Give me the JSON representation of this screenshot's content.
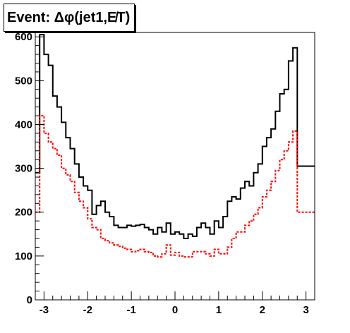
{
  "chart_data": {
    "type": "line",
    "step": true,
    "title": "Event: Δφ(jet1,E̸T)",
    "xlabel": "",
    "ylabel": "",
    "xlim": [
      -3.2,
      3.2
    ],
    "ylim": [
      0,
      610
    ],
    "x_ticks": [
      "-3",
      "-2",
      "-1",
      "0",
      "1",
      "2",
      "3"
    ],
    "y_ticks": [
      "0",
      "100",
      "200",
      "300",
      "400",
      "500",
      "600"
    ],
    "bin_edges": [
      -3.2,
      -3.1,
      -3.0,
      -2.9,
      -2.8,
      -2.7,
      -2.6,
      -2.5,
      -2.4,
      -2.3,
      -2.2,
      -2.1,
      -2.0,
      -1.9,
      -1.8,
      -1.7,
      -1.6,
      -1.5,
      -1.4,
      -1.3,
      -1.2,
      -1.1,
      -1.0,
      -0.9,
      -0.8,
      -0.7,
      -0.6,
      -0.5,
      -0.4,
      -0.3,
      -0.2,
      -0.1,
      0.0,
      0.1,
      0.2,
      0.3,
      0.4,
      0.5,
      0.6,
      0.7,
      0.8,
      0.9,
      1.0,
      1.1,
      1.2,
      1.3,
      1.4,
      1.5,
      1.6,
      1.7,
      1.8,
      1.9,
      2.0,
      2.1,
      2.2,
      2.3,
      2.4,
      2.5,
      2.6,
      2.7,
      2.8,
      2.9,
      3.0,
      3.1,
      3.2
    ],
    "series": [
      {
        "color": "#000000",
        "style": "solid",
        "values": [
          290,
          605,
          560,
          535,
          465,
          440,
          405,
          370,
          345,
          310,
          280,
          260,
          250,
          195,
          215,
          225,
          200,
          190,
          170,
          165,
          165,
          170,
          168,
          170,
          172,
          165,
          160,
          150,
          165,
          155,
          175,
          150,
          155,
          150,
          140,
          150,
          145,
          165,
          175,
          165,
          150,
          180,
          165,
          190,
          225,
          235,
          230,
          255,
          270,
          260,
          290,
          310,
          350,
          370,
          390,
          430,
          470,
          480,
          545,
          575,
          305,
          305,
          305,
          305
        ]
      },
      {
        "color": "#ff0000",
        "style": "dashed",
        "values": [
          200,
          420,
          380,
          360,
          345,
          330,
          300,
          285,
          270,
          245,
          225,
          210,
          185,
          165,
          160,
          140,
          135,
          130,
          125,
          122,
          118,
          115,
          110,
          112,
          115,
          110,
          108,
          100,
          98,
          105,
          125,
          102,
          108,
          100,
          98,
          98,
          110,
          110,
          110,
          105,
          100,
          115,
          105,
          105,
          120,
          140,
          155,
          155,
          170,
          180,
          195,
          210,
          235,
          250,
          270,
          295,
          320,
          340,
          360,
          385,
          200,
          200,
          200,
          200
        ]
      }
    ]
  }
}
